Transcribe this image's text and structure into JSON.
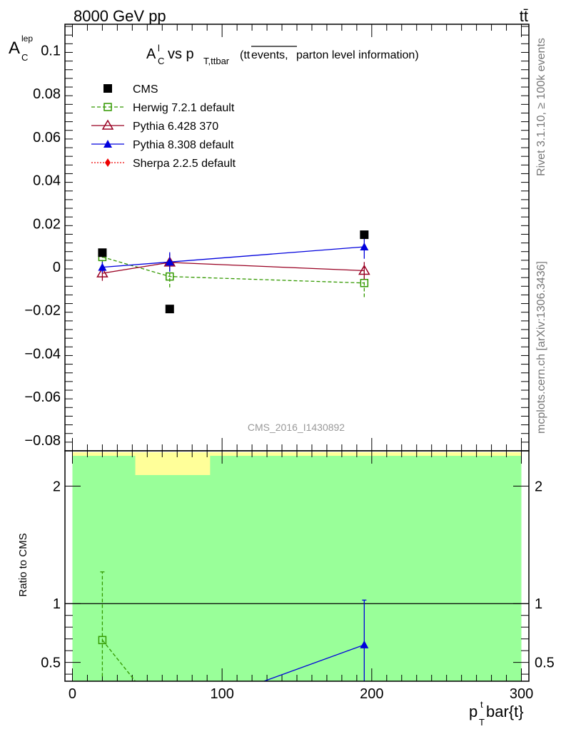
{
  "header": {
    "left": "8000 GeV pp",
    "right": "tt̄"
  },
  "side_labels": {
    "rivet": "Rivet 3.1.10, ≥ 100k events",
    "mcplots": "mcplots.cern.ch [arXiv:1306.3436]"
  },
  "watermark": "CMS_2016_I1430892",
  "main_title": {
    "A": "A",
    "A_sup": "l",
    "A_sub": "C",
    "vs": " vs p",
    "p_sub": "T,ttbar",
    "paren": "(tt",
    "overline": "events,",
    "rest": " parton level information)"
  },
  "y_title": {
    "base": "A",
    "sup": "lep",
    "sub": "C"
  },
  "ratio_y_title": "Ratio to CMS",
  "x_title": {
    "p": "p",
    "sup": "t",
    "sub": "T",
    "rest": "bar{t}"
  },
  "colors": {
    "cms": "#000000",
    "herwig": "#339900",
    "pythia6": "#990022",
    "pythia8": "#0000dd",
    "sherpa": "#ee0000",
    "band_green": "#99ff99",
    "band_yellow": "#ffff99"
  },
  "chart_data": {
    "type": "scatter",
    "x": [
      20,
      65,
      195
    ],
    "xlim": [
      -5,
      305
    ],
    "x_ticks": [
      "0",
      "100",
      "200",
      "300"
    ],
    "main": {
      "ylim": [
        -0.085,
        0.112
      ],
      "y_ticks": [
        "−0.08",
        "−0.06",
        "−0.04",
        "−0.02",
        "0",
        "0.02",
        "0.04",
        "0.06",
        "0.08",
        "0.1"
      ],
      "series": [
        {
          "key": "cms",
          "name": "CMS",
          "marker": "square-filled",
          "line": "none",
          "y": [
            0.0065,
            -0.0195,
            0.0148
          ],
          "err": [
            0.0,
            0.0,
            0.0
          ]
        },
        {
          "key": "herwig",
          "name": "Herwig 7.2.1 default",
          "marker": "square-open",
          "line": "dashed",
          "y": [
            0.0045,
            -0.0045,
            -0.0075
          ],
          "err": [
            0.003,
            0.005,
            0.0065
          ]
        },
        {
          "key": "pythia6",
          "name": "Pythia 6.428 370",
          "marker": "triangle-open",
          "line": "solid",
          "y": [
            -0.003,
            0.002,
            -0.0018
          ],
          "err": [
            0.0035,
            0.004,
            0.004
          ]
        },
        {
          "key": "pythia8",
          "name": "Pythia 8.308 default",
          "marker": "triangle-filled",
          "line": "solid",
          "y": [
            -0.0002,
            0.0022,
            0.0092
          ],
          "err": [
            0.0025,
            0.0045,
            0.0055
          ]
        },
        {
          "key": "sherpa",
          "name": "Sherpa 2.2.5 default",
          "marker": "diamond-filled",
          "line": "dotted",
          "y": [],
          "err": []
        }
      ]
    },
    "ratio": {
      "ylabel": "Ratio to CMS",
      "ylim": [
        0.34,
        2.3
      ],
      "y_ticks": [
        "0.5",
        "1",
        "2"
      ],
      "reference": 1.0,
      "series": [
        {
          "key": "herwig",
          "points": [
            [
              20,
              0.69
            ]
          ],
          "err": [
            [
              0.31,
              0.58
            ]
          ],
          "trend_to": [
            [
              42,
              0.34
            ]
          ]
        },
        {
          "key": "pythia8",
          "points": [
            [
              195,
              0.65
            ]
          ],
          "err": [
            [
              0.31,
              0.38
            ]
          ],
          "trend_from": [
            [
              128,
              0.34
            ]
          ]
        }
      ]
    }
  }
}
